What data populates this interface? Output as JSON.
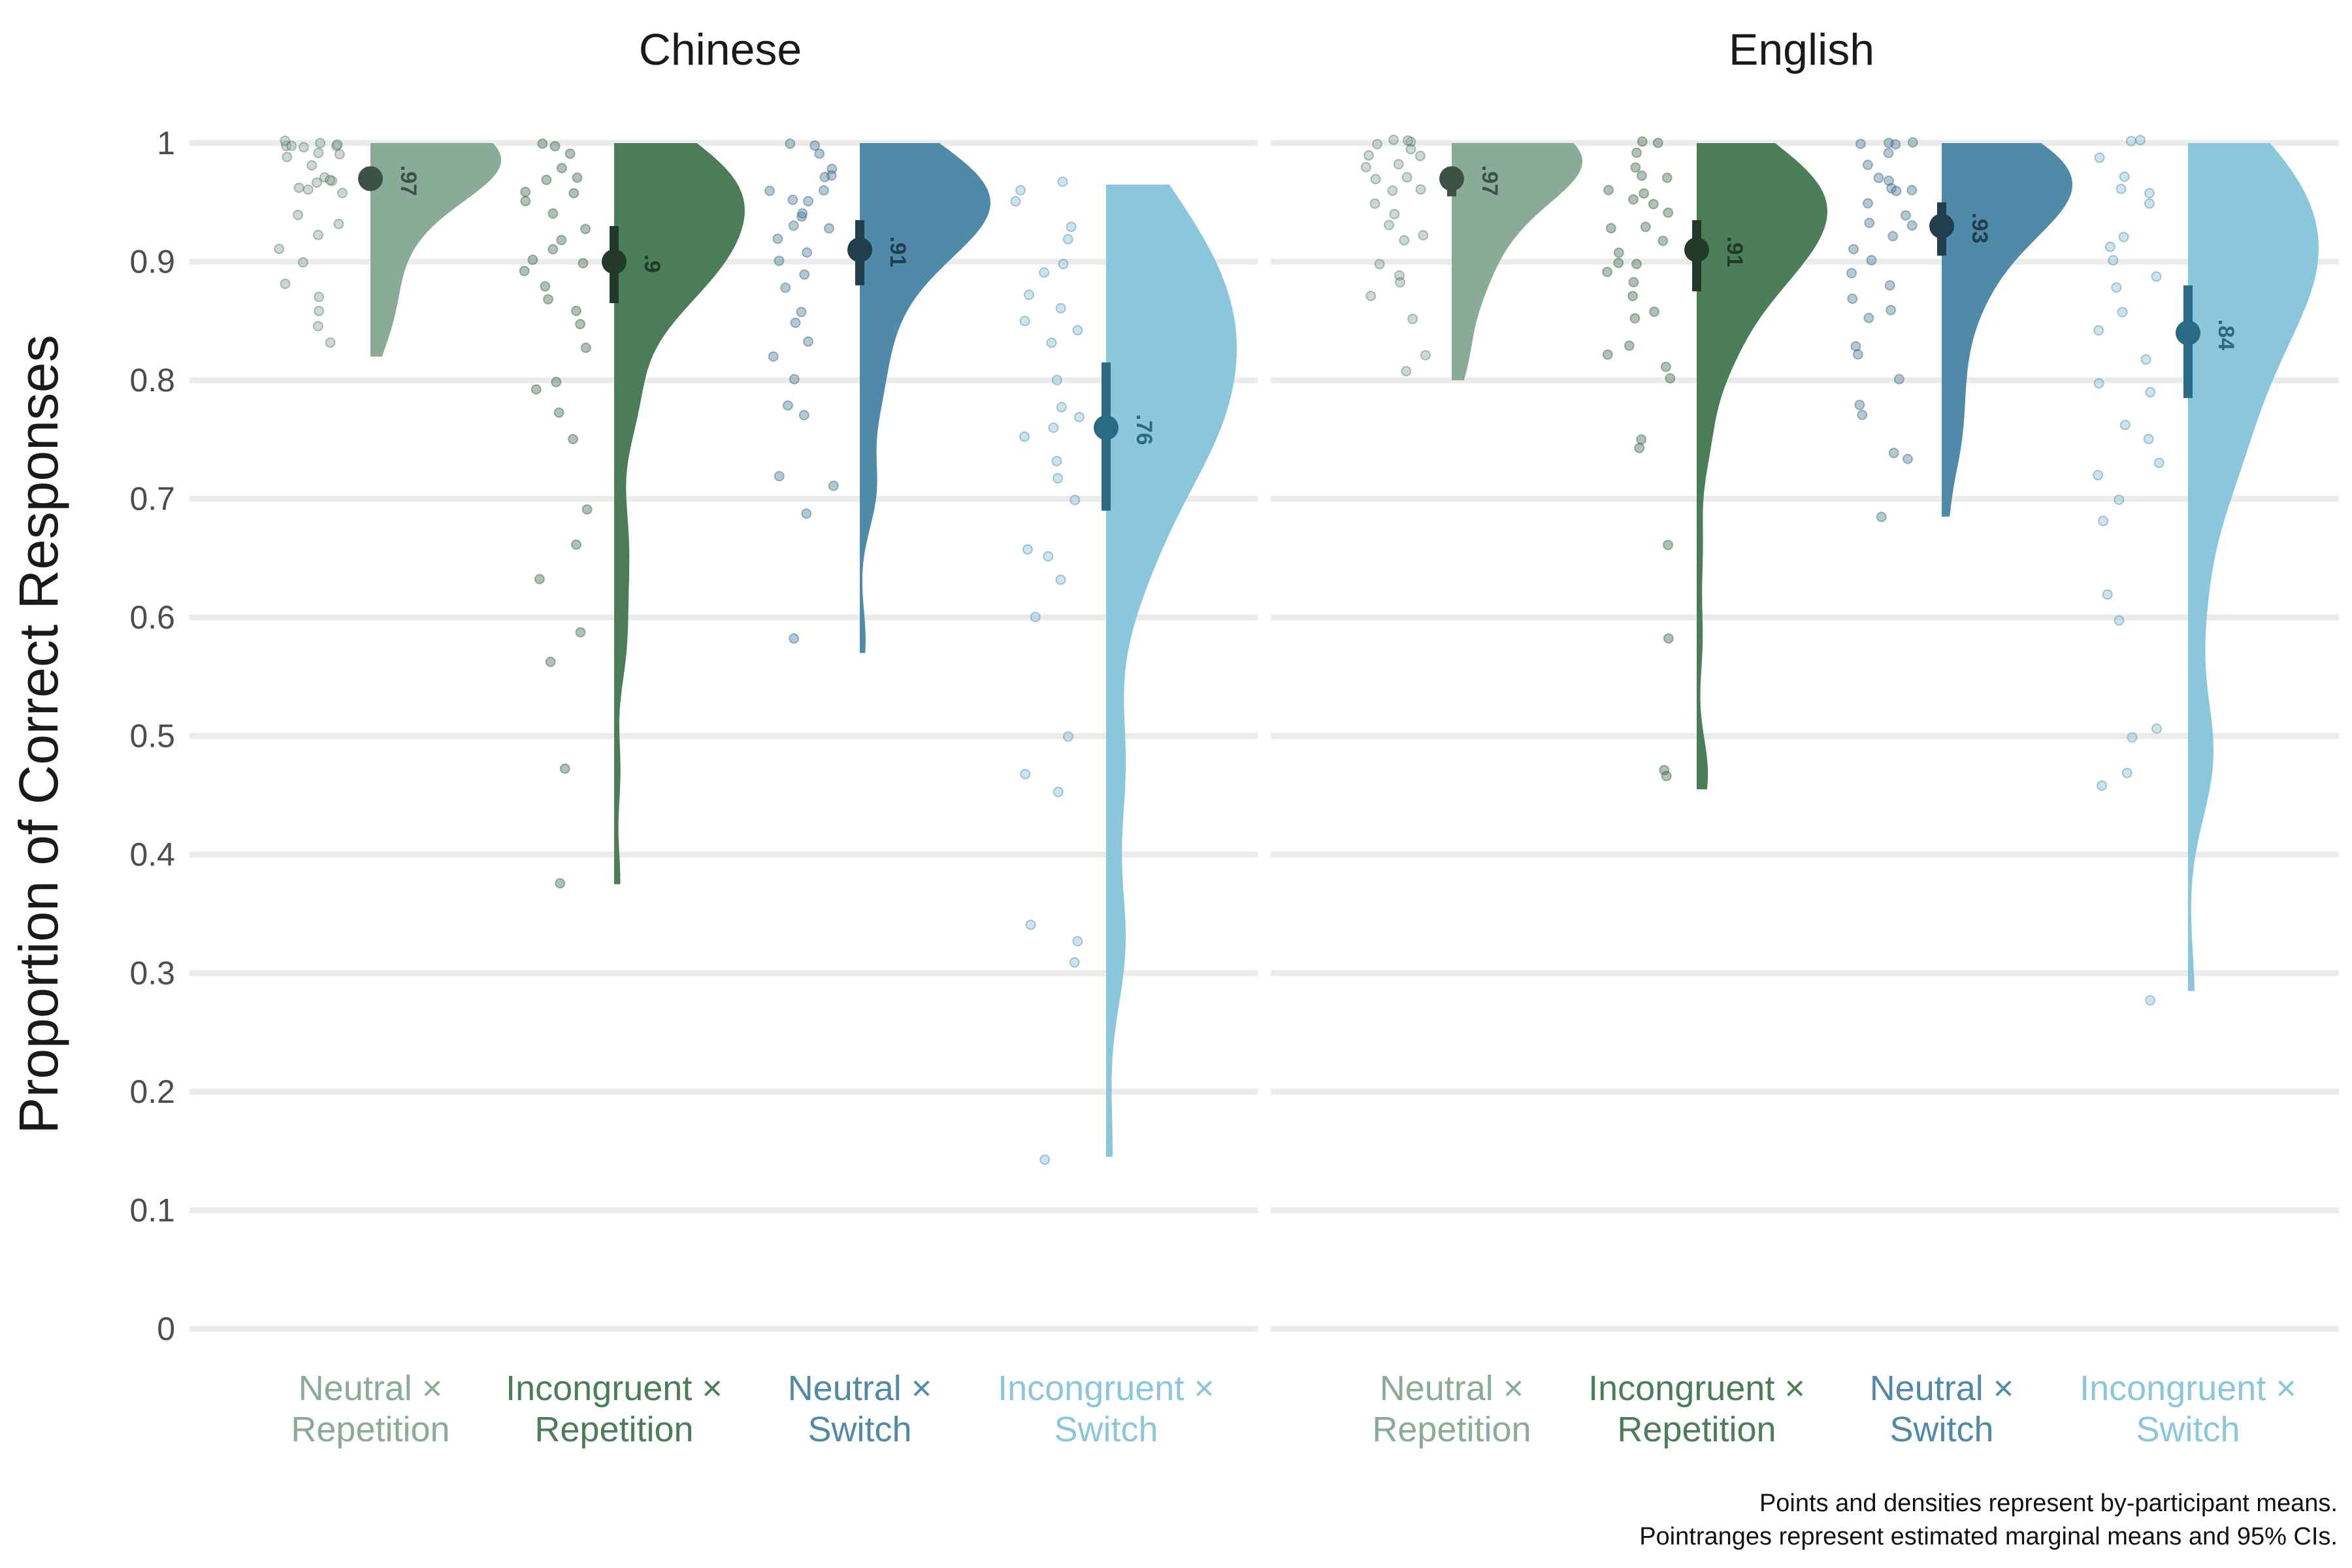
{
  "chart_data": {
    "type": "raincloud",
    "ylabel": "Proportion of Correct Responses",
    "ylim": [
      0,
      1
    ],
    "yticks": [
      "0",
      "0.1",
      "0.2",
      "0.3",
      "0.4",
      "0.5",
      "0.6",
      "0.7",
      "0.8",
      "0.9",
      "1"
    ],
    "grid": "horizontal",
    "categories": [
      {
        "line1": "Neutral ×",
        "line2": "Repetition",
        "color": "#8aab98",
        "dark": "#3d5246"
      },
      {
        "line1": "Incongruent ×",
        "line2": "Repetition",
        "color": "#4a7d58",
        "dark": "#223a29"
      },
      {
        "line1": "Neutral ×",
        "line2": "Switch",
        "color": "#4f8aa8",
        "dark": "#213e4d"
      },
      {
        "line1": "Incongruent ×",
        "line2": "Switch",
        "color": "#8ac6dc",
        "dark": "#2a6a84"
      }
    ],
    "panels": [
      {
        "title": "Chinese",
        "groups": [
          {
            "mean": 0.97,
            "label": ".97",
            "ci": [
              0.96,
              0.98
            ],
            "min": 0.82,
            "max": 1.0,
            "mode": 1.0,
            "spread": 0.05,
            "points": [
              1.0,
              0.99,
              1.0,
              1.0,
              0.995,
              1.0,
              0.99,
              0.98,
              1.0,
              0.97,
              0.96,
              0.97,
              0.965,
              0.96,
              0.94,
              0.93,
              0.92,
              0.91,
              0.9,
              0.88,
              0.87,
              0.86,
              0.845,
              0.83,
              0.96,
              0.97,
              1.0,
              0.99
            ]
          },
          {
            "mean": 0.9,
            "label": ".9",
            "ci": [
              0.865,
              0.93
            ],
            "min": 0.375,
            "max": 1.0,
            "mode": 0.94,
            "spread": 0.06,
            "points": [
              1.0,
              1.0,
              0.99,
              0.97,
              0.97,
              0.96,
              0.95,
              0.94,
              0.93,
              0.92,
              0.91,
              0.9,
              0.9,
              0.89,
              0.88,
              0.87,
              0.86,
              0.85,
              0.83,
              0.8,
              0.79,
              0.77,
              0.75,
              0.69,
              0.66,
              0.63,
              0.59,
              0.56,
              0.47,
              0.375,
              0.96,
              0.98
            ]
          },
          {
            "mean": 0.91,
            "label": ".91",
            "ci": [
              0.88,
              0.935
            ],
            "min": 0.57,
            "max": 1.0,
            "mode": 0.95,
            "spread": 0.055,
            "points": [
              1.0,
              1.0,
              0.99,
              0.98,
              0.97,
              0.97,
              0.96,
              0.95,
              0.94,
              0.94,
              0.93,
              0.93,
              0.92,
              0.91,
              0.9,
              0.89,
              0.88,
              0.86,
              0.85,
              0.83,
              0.82,
              0.8,
              0.78,
              0.77,
              0.72,
              0.71,
              0.69,
              0.58,
              0.95,
              0.96
            ]
          },
          {
            "mean": 0.76,
            "label": ".76",
            "ci": [
              0.69,
              0.815
            ],
            "min": 0.145,
            "max": 0.965,
            "mode": 0.82,
            "spread": 0.1,
            "points": [
              0.97,
              0.96,
              0.95,
              0.93,
              0.92,
              0.9,
              0.89,
              0.87,
              0.86,
              0.85,
              0.84,
              0.83,
              0.8,
              0.78,
              0.77,
              0.76,
              0.75,
              0.73,
              0.72,
              0.7,
              0.66,
              0.65,
              0.63,
              0.6,
              0.5,
              0.47,
              0.455,
              0.34,
              0.325,
              0.31,
              0.145
            ]
          }
        ]
      },
      {
        "title": "English",
        "groups": [
          {
            "mean": 0.97,
            "label": ".97",
            "ci": [
              0.955,
              0.98
            ],
            "min": 0.8,
            "max": 1.0,
            "mode": 1.0,
            "spread": 0.05,
            "points": [
              1.0,
              1.0,
              0.99,
              1.0,
              0.995,
              0.99,
              0.98,
              0.97,
              0.96,
              0.96,
              0.95,
              0.94,
              0.93,
              0.92,
              0.92,
              0.9,
              0.89,
              0.88,
              0.87,
              0.85,
              0.82,
              0.81,
              0.97,
              1.0,
              0.98
            ]
          },
          {
            "mean": 0.91,
            "label": ".91",
            "ci": [
              0.875,
              0.935
            ],
            "min": 0.455,
            "max": 1.0,
            "mode": 0.94,
            "spread": 0.06,
            "points": [
              1.0,
              1.0,
              0.99,
              0.98,
              0.97,
              0.96,
              0.96,
              0.95,
              0.94,
              0.93,
              0.93,
              0.92,
              0.91,
              0.9,
              0.9,
              0.89,
              0.88,
              0.87,
              0.86,
              0.85,
              0.83,
              0.82,
              0.81,
              0.8,
              0.75,
              0.745,
              0.66,
              0.58,
              0.47,
              0.465,
              0.97,
              0.95
            ]
          },
          {
            "mean": 0.93,
            "label": ".93",
            "ci": [
              0.905,
              0.95
            ],
            "min": 0.685,
            "max": 1.0,
            "mode": 0.965,
            "spread": 0.05,
            "points": [
              1.0,
              1.0,
              1.0,
              0.99,
              0.98,
              0.97,
              0.97,
              0.96,
              0.96,
              0.95,
              0.94,
              0.93,
              0.93,
              0.92,
              0.91,
              0.9,
              0.89,
              0.88,
              0.87,
              0.86,
              0.85,
              0.83,
              0.82,
              0.8,
              0.78,
              0.77,
              0.74,
              0.735,
              0.685,
              0.96,
              1.0
            ]
          },
          {
            "mean": 0.84,
            "label": ".84",
            "ci": [
              0.785,
              0.88
            ],
            "min": 0.285,
            "max": 1.0,
            "mode": 0.9,
            "spread": 0.09,
            "points": [
              1.0,
              1.0,
              0.99,
              0.97,
              0.96,
              0.95,
              0.92,
              0.91,
              0.89,
              0.88,
              0.86,
              0.84,
              0.82,
              0.8,
              0.79,
              0.76,
              0.75,
              0.73,
              0.72,
              0.7,
              0.68,
              0.62,
              0.6,
              0.505,
              0.5,
              0.47,
              0.46,
              0.275,
              0.96,
              0.9
            ]
          }
        ]
      }
    ],
    "caption": [
      "Points and densities represent by-participant means.",
      "Pointranges represent estimated marginal means and 95% CIs."
    ]
  }
}
